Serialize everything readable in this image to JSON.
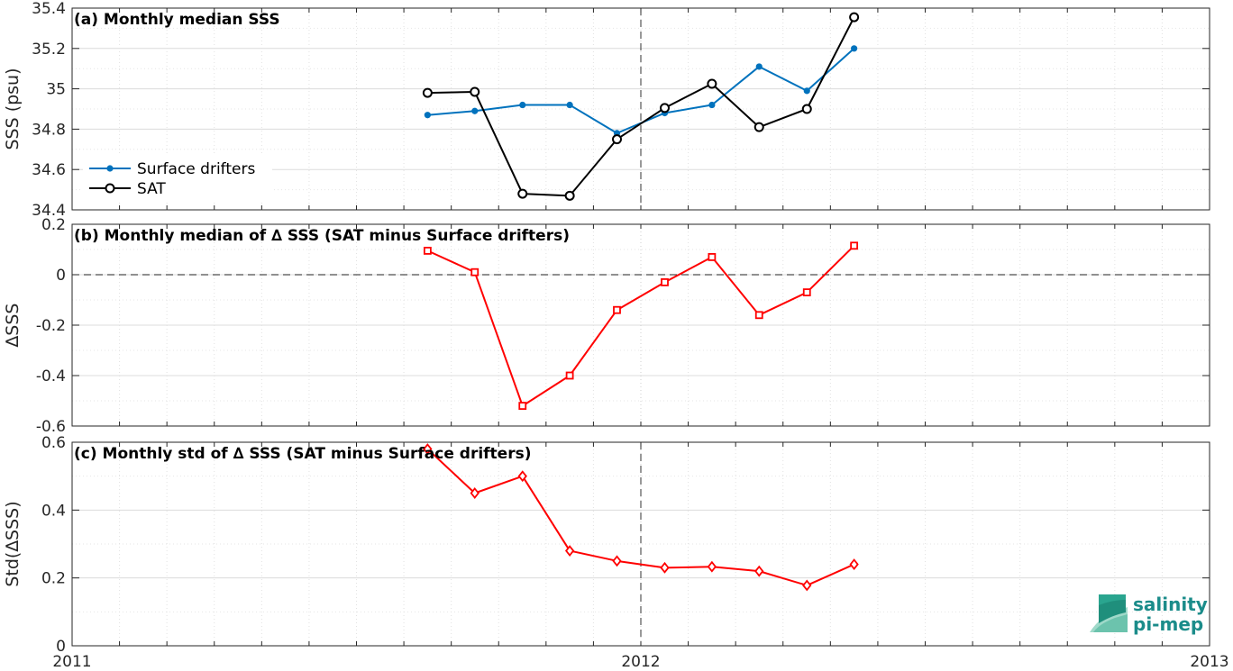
{
  "chart_data": [
    {
      "type": "line",
      "title": "(a) Monthly median SSS",
      "ylabel": "SSS (psu)",
      "ylim": [
        34.4,
        35.4
      ],
      "yticks": [
        34.4,
        34.6,
        34.8,
        35,
        35.2,
        35.4
      ],
      "ytick_labels": [
        "34.4",
        "34.6",
        "34.8",
        "35",
        "35.2",
        "35.4"
      ],
      "xlim": [
        2011,
        2013
      ],
      "x": [
        2011.625,
        2011.708,
        2011.792,
        2011.875,
        2011.958,
        2012.042,
        2012.125,
        2012.208,
        2012.292,
        2012.375
      ],
      "grid": true,
      "legend_position": "lower-left",
      "series": [
        {
          "name": "Surface drifters",
          "color": "#0072bd",
          "marker": "dot",
          "values": [
            34.87,
            34.89,
            34.92,
            34.92,
            34.78,
            34.88,
            34.92,
            35.11,
            34.99,
            35.2
          ]
        },
        {
          "name": "SAT",
          "color": "#000000",
          "marker": "circle",
          "values": [
            34.98,
            34.985,
            34.48,
            34.47,
            34.75,
            34.905,
            35.025,
            34.81,
            34.9,
            35.355
          ]
        }
      ]
    },
    {
      "type": "line",
      "title": "(b) Monthly median of ∆ SSS (SAT minus Surface drifters)",
      "ylabel": "∆SSS",
      "ylim": [
        -0.6,
        0.2
      ],
      "yticks": [
        -0.6,
        -0.4,
        -0.2,
        0,
        0.2
      ],
      "ytick_labels": [
        "-0.6",
        "-0.4",
        "-0.2",
        "0",
        "0.2"
      ],
      "xlim": [
        2011,
        2013
      ],
      "x": [
        2011.625,
        2011.708,
        2011.792,
        2011.875,
        2011.958,
        2012.042,
        2012.125,
        2012.208,
        2012.292,
        2012.375
      ],
      "grid": true,
      "series": [
        {
          "color": "#ff0000",
          "marker": "square",
          "values": [
            0.095,
            0.01,
            -0.52,
            -0.4,
            -0.14,
            -0.03,
            0.07,
            -0.16,
            -0.07,
            0.115
          ]
        }
      ]
    },
    {
      "type": "line",
      "title": "(c) Monthly std of ∆ SSS (SAT minus Surface drifters)",
      "ylabel": "Std(∆SSS)",
      "ylim": [
        0,
        0.6
      ],
      "yticks": [
        0,
        0.2,
        0.4,
        0.6
      ],
      "ytick_labels": [
        "0",
        "0.2",
        "0.4",
        "0.6"
      ],
      "xlim": [
        2011,
        2013
      ],
      "xticks": [
        2011,
        2012,
        2013
      ],
      "xtick_labels": [
        "2011",
        "2012",
        "2013"
      ],
      "x": [
        2011.625,
        2011.708,
        2011.792,
        2011.875,
        2011.958,
        2012.042,
        2012.125,
        2012.208,
        2012.292,
        2012.375
      ],
      "grid": true,
      "series": [
        {
          "color": "#ff0000",
          "marker": "diamond",
          "values": [
            0.58,
            0.45,
            0.5,
            0.28,
            0.25,
            0.23,
            0.233,
            0.22,
            0.178,
            0.24
          ]
        }
      ]
    }
  ],
  "vline_x": 2012,
  "logo": {
    "line1": "salinity",
    "line2": "pi-mep",
    "color": "#1b8c8a"
  }
}
